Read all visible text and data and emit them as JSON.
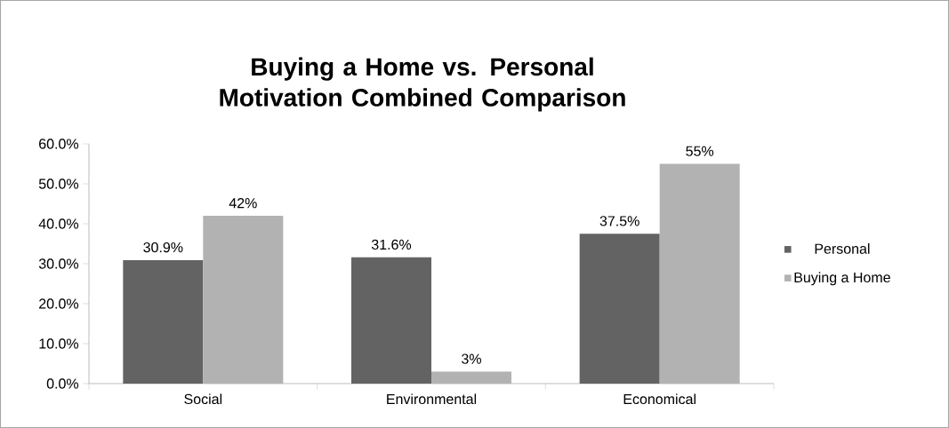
{
  "chart_data": {
    "type": "bar",
    "title": "Buying a Home vs. Personal Motivation Combined Comparison",
    "categories": [
      "Social",
      "Environmental",
      "Economical"
    ],
    "series": [
      {
        "name": "Personal",
        "color": "#636363",
        "values": [
          30.9,
          31.6,
          37.5
        ],
        "value_labels": [
          "30.9%",
          "31.6%",
          "37.5%"
        ]
      },
      {
        "name": "Buying a Home",
        "color": "#b2b2b2",
        "values": [
          42,
          3,
          55
        ],
        "value_labels": [
          "42%",
          "3%",
          "55%"
        ]
      }
    ],
    "ylim": [
      0,
      60
    ],
    "yticks": [
      {
        "value": 0,
        "label": "0.0%"
      },
      {
        "value": 10,
        "label": "10.0%"
      },
      {
        "value": 20,
        "label": "20.0%"
      },
      {
        "value": 30,
        "label": "30.0%"
      },
      {
        "value": 40,
        "label": "40.0%"
      },
      {
        "value": 50,
        "label": "50.0%"
      },
      {
        "value": 60,
        "label": "60.0%"
      }
    ],
    "grid": false,
    "legend": "right"
  }
}
